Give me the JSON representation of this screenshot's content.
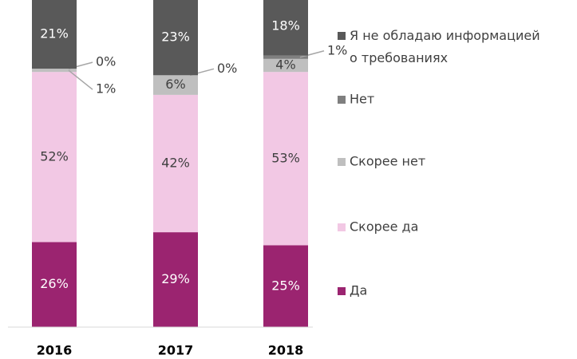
{
  "chart_data": {
    "type": "stacked_bar",
    "categories": [
      "2016",
      "2017",
      "2018"
    ],
    "ylim": [
      0,
      100
    ],
    "series": [
      {
        "name": "Да",
        "color": "#9b2470",
        "values": [
          26,
          29,
          25
        ],
        "value_labels": [
          "26%",
          "29%",
          "25%"
        ]
      },
      {
        "name": "Скорее да",
        "color": "#f2c8e4",
        "values": [
          52,
          42,
          53
        ],
        "value_labels": [
          "52%",
          "42%",
          "53%"
        ]
      },
      {
        "name": "Скорее нет",
        "color": "#bfbfbf",
        "values": [
          1,
          6,
          4
        ],
        "value_labels": [
          "1%",
          "6%",
          "4%"
        ]
      },
      {
        "name": "Нет",
        "color": "#7f7f7f",
        "values": [
          0,
          0,
          1
        ],
        "value_labels": [
          "0%",
          "0%",
          "1%"
        ]
      },
      {
        "name": "Я не обладаю информацией о требованиях",
        "color": "#595959",
        "values": [
          21,
          23,
          18
        ],
        "value_labels": [
          "21%",
          "23%",
          "18%"
        ]
      }
    ]
  }
}
